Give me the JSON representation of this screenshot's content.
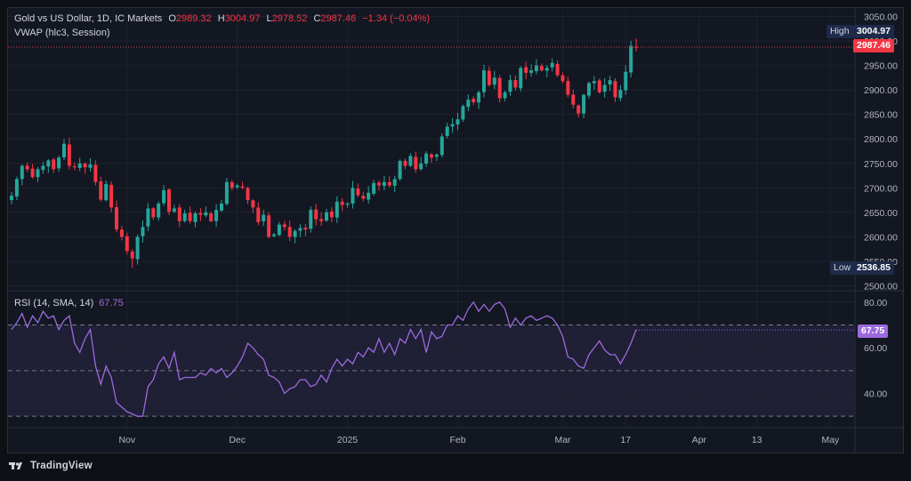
{
  "legend": {
    "symbol": "Gold vs US Dollar, 1D, IC Markets",
    "o_key": "O",
    "o_val": "2989.32",
    "h_key": "H",
    "h_val": "3004.97",
    "l_key": "L",
    "l_val": "2978.52",
    "c_key": "C",
    "c_val": "2987.46",
    "change": "−1.34 (−0.04%)",
    "vwap": "VWAP (hlc3, Session)",
    "rsi_label": "RSI (14, SMA, 14)",
    "rsi_value": "67.75"
  },
  "tags": {
    "high_label": "High",
    "high_value": "3004.97",
    "last_value": "2987.46",
    "low_label": "Low",
    "low_value": "2536.85",
    "rsi_value": "67.75"
  },
  "branding": {
    "name": "TradingView"
  },
  "colors": {
    "up": "#26a69a",
    "down": "#f23645",
    "rsi": "#9c6ade",
    "background": "#131722",
    "grid": "#1e222d"
  },
  "chart_data": [
    {
      "type": "candlestick",
      "title": "Gold vs US Dollar, 1D, IC Markets",
      "ylim": [
        2490,
        3060
      ],
      "y_ticks": [
        2500,
        2550,
        2600,
        2650,
        2700,
        2750,
        2800,
        2850,
        2900,
        2950,
        3000,
        3050
      ],
      "y_tick_labels": [
        "2500.00",
        "2550.00",
        "2600.00",
        "2650.00",
        "2700.00",
        "2750.00",
        "2800.00",
        "2850.00",
        "2900.00",
        "2950.00",
        "3000.00",
        "3050.00"
      ],
      "x_ticks": [
        "Nov",
        "Dec",
        "2025",
        "Feb",
        "Mar",
        "17",
        "Apr",
        "13",
        "May"
      ],
      "x_tick_positions": [
        22,
        43,
        64,
        85,
        105,
        117,
        131,
        142,
        156
      ],
      "closes": [
        2684,
        2718,
        2745,
        2738,
        2722,
        2738,
        2745,
        2756,
        2738,
        2762,
        2790,
        2745,
        2742,
        2750,
        2742,
        2748,
        2712,
        2676,
        2708,
        2660,
        2615,
        2600,
        2571,
        2556,
        2600,
        2620,
        2658,
        2640,
        2668,
        2695,
        2651,
        2658,
        2632,
        2648,
        2632,
        2648,
        2645,
        2650,
        2632,
        2655,
        2668,
        2712,
        2700,
        2705,
        2700,
        2675,
        2660,
        2630,
        2645,
        2600,
        2605,
        2625,
        2620,
        2600,
        2612,
        2618,
        2615,
        2655,
        2636,
        2632,
        2650,
        2640,
        2672,
        2665,
        2668,
        2700,
        2685,
        2678,
        2690,
        2710,
        2705,
        2712,
        2705,
        2718,
        2755,
        2745,
        2765,
        2738,
        2750,
        2770,
        2762,
        2768,
        2805,
        2825,
        2830,
        2840,
        2867,
        2880,
        2875,
        2895,
        2940,
        2910,
        2925,
        2883,
        2895,
        2920,
        2905,
        2945,
        2935,
        2940,
        2950,
        2940,
        2945,
        2955,
        2930,
        2918,
        2890,
        2870,
        2852,
        2890,
        2914,
        2918,
        2895,
        2910,
        2920,
        2885,
        2900,
        2937,
        2990,
        2987
      ],
      "x_bar_index_step": 1,
      "high_marker": 3004.97,
      "low_marker": 2536.85,
      "last_price": 2987.46
    },
    {
      "type": "line",
      "title": "RSI (14, SMA, 14)",
      "ylim": [
        25,
        85
      ],
      "y_ticks": [
        40,
        60,
        80
      ],
      "y_tick_labels": [
        "40.00",
        "60.00",
        "80.00"
      ],
      "bands": [
        30,
        50,
        70
      ],
      "values": [
        68,
        71,
        75,
        69,
        74,
        71,
        76,
        73,
        74,
        68,
        72,
        74,
        62,
        58,
        64,
        68,
        52,
        44,
        52,
        47,
        36,
        34,
        32,
        31,
        30,
        30,
        43,
        46,
        53,
        56,
        51,
        58,
        46,
        47,
        47,
        47,
        49,
        48,
        51,
        49,
        51,
        47,
        49,
        52,
        56,
        62,
        60,
        57,
        55,
        48,
        47,
        45,
        40,
        42,
        43,
        46,
        46,
        43,
        44,
        48,
        45,
        51,
        55,
        52,
        55,
        53,
        58,
        56,
        60,
        58,
        64,
        58,
        62,
        57,
        64,
        62,
        68,
        64,
        68,
        58,
        67,
        64,
        65,
        70,
        70,
        74,
        72,
        77,
        80,
        76,
        79,
        76,
        79,
        80,
        77,
        69,
        73,
        70,
        73,
        74,
        72,
        73,
        74,
        73,
        70,
        65,
        56,
        55,
        52,
        51,
        57,
        60,
        63,
        59,
        57,
        57,
        53,
        57,
        62,
        68
      ],
      "last": 67.75
    }
  ]
}
